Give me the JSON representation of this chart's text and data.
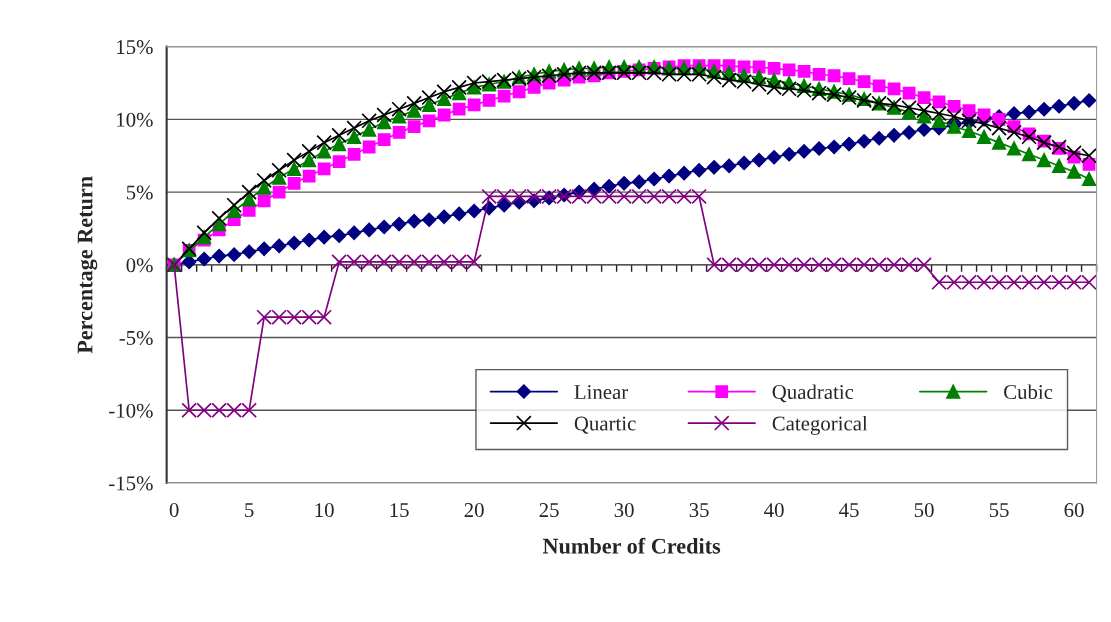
{
  "chart_data": {
    "type": "line",
    "xlabel": "Number of Credits",
    "ylabel": "Percentage Return",
    "x": [
      0,
      1,
      2,
      3,
      4,
      5,
      6,
      7,
      8,
      9,
      10,
      11,
      12,
      13,
      14,
      15,
      16,
      17,
      18,
      19,
      20,
      21,
      22,
      23,
      24,
      25,
      26,
      27,
      28,
      29,
      30,
      31,
      32,
      33,
      34,
      35,
      36,
      37,
      38,
      39,
      40,
      41,
      42,
      43,
      44,
      45,
      46,
      47,
      48,
      49,
      50,
      51,
      52,
      53,
      54,
      55,
      56,
      57,
      58,
      59,
      60,
      61
    ],
    "xlim": [
      -0.5,
      61.5
    ],
    "xticks": [
      0,
      5,
      10,
      15,
      20,
      25,
      30,
      35,
      40,
      45,
      50,
      55,
      60
    ],
    "ylim": [
      -15,
      15
    ],
    "yticks": [
      {
        "value": -15,
        "label": "-15%"
      },
      {
        "value": -10,
        "label": "-10%"
      },
      {
        "value": -5,
        "label": "-5%"
      },
      {
        "value": 0,
        "label": "0%"
      },
      {
        "value": 5,
        "label": "5%"
      },
      {
        "value": 10,
        "label": "10%"
      },
      {
        "value": 15,
        "label": "15%"
      }
    ],
    "grid": "y",
    "legend": "bottom right",
    "series": [
      {
        "name": "Linear",
        "color": "#000080",
        "marker": "diamond",
        "values": [
          0,
          0.2,
          0.4,
          0.6,
          0.7,
          0.9,
          1.1,
          1.3,
          1.5,
          1.7,
          1.9,
          2.0,
          2.2,
          2.4,
          2.6,
          2.8,
          3.0,
          3.1,
          3.3,
          3.5,
          3.7,
          3.9,
          4.1,
          4.3,
          4.4,
          4.6,
          4.8,
          5.0,
          5.2,
          5.4,
          5.6,
          5.7,
          5.9,
          6.1,
          6.3,
          6.5,
          6.7,
          6.8,
          7.0,
          7.2,
          7.4,
          7.6,
          7.8,
          8.0,
          8.1,
          8.3,
          8.5,
          8.7,
          8.9,
          9.1,
          9.3,
          9.4,
          9.6,
          9.8,
          10.0,
          10.2,
          10.4,
          10.5,
          10.7,
          10.9,
          11.1,
          11.3
        ]
      },
      {
        "name": "Quadratic",
        "color": "#ff00ff",
        "marker": "square",
        "values": [
          0,
          1.0,
          1.7,
          2.4,
          3.1,
          3.75,
          4.4,
          5.0,
          5.6,
          6.1,
          6.6,
          7.1,
          7.6,
          8.1,
          8.6,
          9.1,
          9.5,
          9.9,
          10.3,
          10.7,
          11.0,
          11.3,
          11.6,
          11.9,
          12.2,
          12.5,
          12.7,
          12.9,
          13.0,
          13.2,
          13.3,
          13.4,
          13.5,
          13.6,
          13.7,
          13.7,
          13.7,
          13.7,
          13.6,
          13.6,
          13.5,
          13.4,
          13.3,
          13.1,
          13.0,
          12.8,
          12.6,
          12.3,
          12.1,
          11.8,
          11.5,
          11.2,
          10.9,
          10.6,
          10.3,
          10.0,
          9.5,
          9.0,
          8.5,
          8.0,
          7.4,
          6.9
        ]
      },
      {
        "name": "Cubic",
        "color": "#008000",
        "marker": "triangle",
        "values": [
          0,
          1.0,
          1.9,
          2.8,
          3.7,
          4.5,
          5.3,
          6.0,
          6.6,
          7.2,
          7.8,
          8.3,
          8.8,
          9.3,
          9.8,
          10.2,
          10.6,
          11.0,
          11.4,
          11.8,
          12.2,
          12.4,
          12.6,
          12.9,
          13.1,
          13.3,
          13.4,
          13.5,
          13.5,
          13.6,
          13.6,
          13.6,
          13.6,
          13.5,
          13.5,
          13.5,
          13.3,
          13.2,
          13.0,
          12.9,
          12.7,
          12.5,
          12.3,
          12.1,
          11.9,
          11.7,
          11.4,
          11.1,
          10.8,
          10.5,
          10.2,
          9.9,
          9.5,
          9.2,
          8.8,
          8.4,
          8.0,
          7.6,
          7.2,
          6.8,
          6.4,
          5.9
        ]
      },
      {
        "name": "Quartic",
        "color": "#000000",
        "marker": "cross",
        "values": [
          0,
          1.1,
          2.2,
          3.2,
          4.1,
          5.0,
          5.8,
          6.5,
          7.2,
          7.8,
          8.4,
          8.9,
          9.4,
          9.9,
          10.3,
          10.7,
          11.1,
          11.5,
          11.9,
          12.2,
          12.5,
          12.6,
          12.7,
          12.8,
          12.9,
          13.0,
          13.1,
          13.2,
          13.2,
          13.2,
          13.2,
          13.2,
          13.2,
          13.1,
          13.1,
          13.1,
          12.9,
          12.7,
          12.6,
          12.4,
          12.2,
          12.1,
          12.0,
          11.8,
          11.7,
          11.5,
          11.3,
          11.1,
          11.0,
          10.8,
          10.6,
          10.4,
          10.2,
          9.9,
          9.7,
          9.4,
          9.1,
          8.8,
          8.4,
          8.1,
          7.7,
          7.5
        ]
      },
      {
        "name": "Categorical",
        "color": "#800080",
        "marker": "cross",
        "values": [
          0,
          -10.0,
          -10.0,
          -10.0,
          -10.0,
          -10.0,
          -3.6,
          -3.6,
          -3.6,
          -3.6,
          -3.6,
          0.2,
          0.2,
          0.2,
          0.2,
          0.2,
          0.2,
          0.2,
          0.2,
          0.2,
          0.2,
          4.7,
          4.7,
          4.7,
          4.7,
          4.7,
          4.7,
          4.7,
          4.7,
          4.7,
          4.7,
          4.7,
          4.7,
          4.7,
          4.7,
          4.7,
          0.0,
          0.0,
          0.0,
          0.0,
          0.0,
          0.0,
          0.0,
          0.0,
          0.0,
          0.0,
          0.0,
          0.0,
          0.0,
          0.0,
          0.0,
          -1.2,
          -1.2,
          -1.2,
          -1.2,
          -1.2,
          -1.2,
          -1.2,
          -1.2,
          -1.2,
          -1.2,
          -1.2
        ]
      }
    ]
  }
}
